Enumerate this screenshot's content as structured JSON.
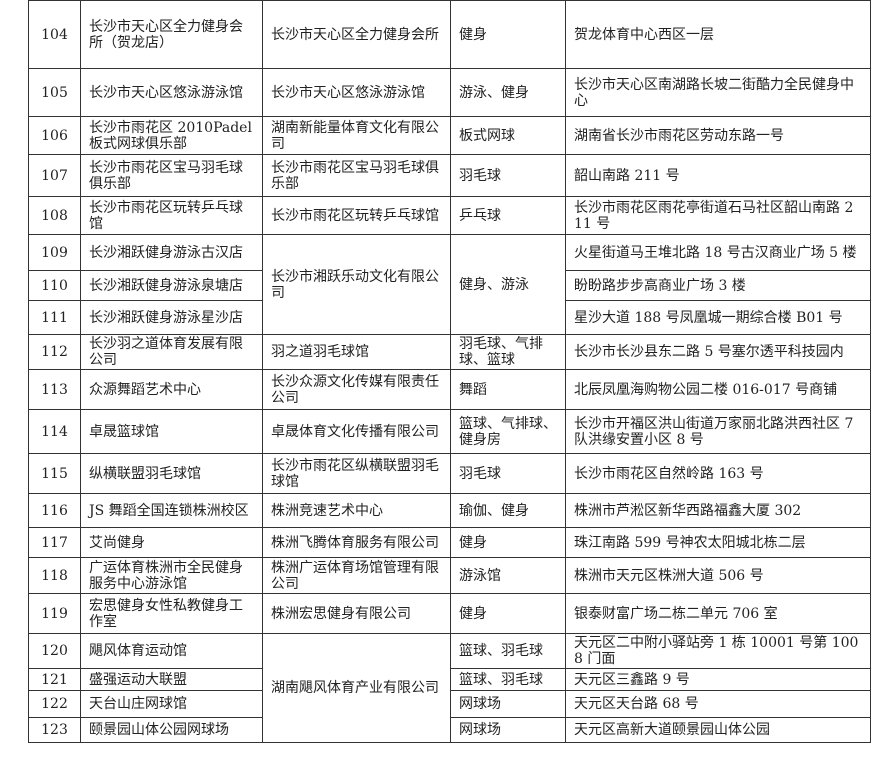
{
  "table": {
    "rows": [
      {
        "no": "104",
        "name": "长沙市天心区全力健身会所（贺龙店）",
        "company": "长沙市天心区全力健身会所",
        "type": "健身",
        "address": "贺龙体育中心西区一层"
      },
      {
        "no": "105",
        "name": "长沙市天心区悠泳游泳馆",
        "company": "长沙市天心区悠泳游泳馆",
        "type": "游泳、健身",
        "address": "长沙市天心区南湖路长坡二街酷力全民健身中心"
      },
      {
        "no": "106",
        "name": "长沙市雨花区 2010Padel 板式网球俱乐部",
        "company": "湖南新能量体育文化有限公司",
        "type": "板式网球",
        "address": "湖南省长沙市雨花区劳动东路一号"
      },
      {
        "no": "107",
        "name": "长沙市雨花区宝马羽毛球俱乐部",
        "company": "长沙市雨花区宝马羽毛球俱乐部",
        "type": "羽毛球",
        "address": "韶山南路 211 号"
      },
      {
        "no": "108",
        "name": "长沙市雨花区玩转乒乓球馆",
        "company": "长沙市雨花区玩转乒乓球馆",
        "type": "乒乓球",
        "address": "长沙市雨花区雨花亭街道石马社区韶山南路 211 号"
      },
      {
        "no": "109",
        "name": "长沙湘跃健身游泳古汉店",
        "company": "长沙市湘跃乐动文化有限公司",
        "type": "健身、游泳",
        "address": "火星街道马王堆北路 18 号古汉商业广场 5 楼"
      },
      {
        "no": "110",
        "name": "长沙湘跃健身游泳泉塘店",
        "address": "盼盼路步步高商业广场 3 楼"
      },
      {
        "no": "111",
        "name": "长沙湘跃健身游泳星沙店",
        "address": "星沙大道 188 号凤凰城一期综合楼 B01 号"
      },
      {
        "no": "112",
        "name": "长沙羽之道体育发展有限公司",
        "company": "羽之道羽毛球馆",
        "type": "羽毛球、气排球、篮球",
        "address": "长沙市长沙县东二路 5 号塞尔透平科技园内"
      },
      {
        "no": "113",
        "name": "众源舞蹈艺术中心",
        "company": "长沙众源文化传媒有限责任公司",
        "type": "舞蹈",
        "address": "北辰凤凰海购物公园二楼 016-017 号商铺"
      },
      {
        "no": "114",
        "name": "卓晟篮球馆",
        "company": "卓晟体育文化传播有限公司",
        "type": "篮球、气排球、健身房",
        "address": "长沙市开福区洪山街道万家丽北路洪西社区 7 队洪缘安置小区 8 号"
      },
      {
        "no": "115",
        "name": "纵横联盟羽毛球馆",
        "company": "长沙市雨花区纵横联盟羽毛球馆",
        "type": "羽毛球",
        "address": "长沙市雨花区自然岭路 163 号"
      },
      {
        "no": "116",
        "name": "JS 舞蹈全国连锁株洲校区",
        "company": "株洲竞速艺术中心",
        "type": "瑜伽、健身",
        "address": "株洲市芦淞区新华西路福鑫大厦 302"
      },
      {
        "no": "117",
        "name": "艾尚健身",
        "company": "株洲飞腾体育服务有限公司",
        "type": "健身",
        "address": "珠江南路 599 号神农太阳城北栋二层"
      },
      {
        "no": "118",
        "name": "广运体育株洲市全民健身服务中心游泳馆",
        "company": "株洲广运体育场馆管理有限公司",
        "type": "游泳馆",
        "address": "株洲市天元区株洲大道 506 号"
      },
      {
        "no": "119",
        "name": "宏思健身女性私教健身工作室",
        "company": "株洲宏思健身有限公司",
        "type": "健身",
        "address": "银泰财富广场二栋二单元 706 室"
      },
      {
        "no": "120",
        "name": "飓风体育运动馆",
        "company": "湖南飓风体育产业有限公司",
        "type": "篮球、羽毛球",
        "address": "天元区二中附小驿站旁 1 栋 10001 号第 1008 门面"
      },
      {
        "no": "121",
        "name": "盛强运动大联盟",
        "type": "篮球、羽毛球",
        "address": "天元区三鑫路 9 号"
      },
      {
        "no": "122",
        "name": "天台山庄网球馆",
        "type": "网球场",
        "address": "天元区天台路 68 号"
      },
      {
        "no": "123",
        "name": "颐景园山体公园网球场",
        "type": "网球场",
        "address": "天元区高新大道颐景园山体公园"
      }
    ]
  }
}
